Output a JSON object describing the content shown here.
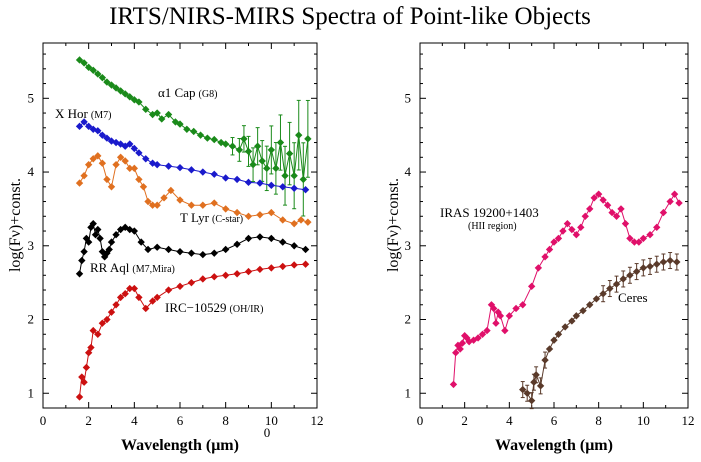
{
  "title": "IRTS/NIRS-MIRS Spectra of Point-like Objects",
  "chart_data": [
    {
      "type": "line",
      "xlabel": "Wavelength (μm)",
      "ylabel": "log(Fν)+const.",
      "xlim": [
        0,
        12
      ],
      "ylim": [
        0.8,
        5.75
      ],
      "xticks": [
        "0",
        "2",
        "4",
        "6",
        "8",
        "10",
        "12"
      ],
      "yticks": [
        "1",
        "2",
        "3",
        "4",
        "5"
      ],
      "grid": false,
      "extra_label": "0",
      "series": [
        {
          "name": "α1 Cap",
          "note": "(G8)",
          "color": "#1a8a1a",
          "x": [
            1.6,
            1.8,
            2.0,
            2.2,
            2.4,
            2.6,
            2.8,
            3.0,
            3.2,
            3.4,
            3.6,
            3.8,
            4.0,
            4.2,
            4.5,
            4.8,
            5.0,
            5.2,
            5.5,
            5.8,
            6.0,
            6.3,
            6.6,
            6.9,
            7.2,
            7.5,
            7.8,
            8.0,
            8.3,
            8.6,
            8.8,
            9.0,
            9.2,
            9.4,
            9.6,
            9.8,
            10.0,
            10.2,
            10.4,
            10.6,
            10.8,
            11.0,
            11.2,
            11.4,
            11.6
          ],
          "values": [
            5.52,
            5.48,
            5.42,
            5.38,
            5.33,
            5.28,
            5.22,
            5.18,
            5.14,
            5.1,
            5.06,
            5.02,
            4.98,
            4.95,
            4.85,
            4.78,
            4.8,
            4.72,
            4.78,
            4.68,
            4.65,
            4.58,
            4.55,
            4.5,
            4.46,
            4.44,
            4.4,
            4.38,
            4.35,
            4.3,
            4.45,
            4.28,
            4.1,
            4.35,
            4.15,
            4.05,
            4.3,
            4.05,
            4.4,
            3.95,
            4.25,
            3.95,
            4.5,
            3.9,
            4.45
          ],
          "error_bars": true
        },
        {
          "name": "X Hor",
          "note": "(M7)",
          "color": "#1a1acc",
          "x": [
            1.6,
            1.8,
            2.0,
            2.2,
            2.4,
            2.6,
            2.8,
            3.0,
            3.2,
            3.4,
            3.6,
            3.8,
            4.0,
            4.2,
            4.5,
            4.8,
            5.0,
            5.5,
            6.0,
            6.5,
            7.0,
            7.5,
            8.0,
            8.5,
            9.0,
            9.5,
            10.0,
            10.5,
            11.0,
            11.5
          ],
          "values": [
            4.62,
            4.68,
            4.62,
            4.58,
            4.56,
            4.5,
            4.46,
            4.42,
            4.4,
            4.38,
            4.35,
            4.38,
            4.32,
            4.26,
            4.18,
            4.12,
            4.1,
            4.08,
            4.06,
            4.03,
            4.0,
            3.97,
            3.92,
            3.9,
            3.86,
            3.85,
            3.82,
            3.8,
            3.78,
            3.76
          ]
        },
        {
          "name": "T Lyr",
          "note": "(C-star)",
          "color": "#e07020",
          "x": [
            1.6,
            1.8,
            2.0,
            2.2,
            2.4,
            2.6,
            2.8,
            3.0,
            3.2,
            3.4,
            3.6,
            3.8,
            4.0,
            4.2,
            4.4,
            4.6,
            4.8,
            5.0,
            5.3,
            5.6,
            6.0,
            6.5,
            7.0,
            7.5,
            8.0,
            8.5,
            9.0,
            9.5,
            10.0,
            10.5,
            11.0,
            11.3,
            11.6
          ],
          "values": [
            3.85,
            3.95,
            4.1,
            4.18,
            4.22,
            4.12,
            3.9,
            3.8,
            4.1,
            4.2,
            4.15,
            4.05,
            4.05,
            3.9,
            3.8,
            3.6,
            3.55,
            3.55,
            3.65,
            3.75,
            3.62,
            3.55,
            3.55,
            3.58,
            3.5,
            3.45,
            3.4,
            3.42,
            3.45,
            3.35,
            3.3,
            3.35,
            3.32
          ]
        },
        {
          "name": "RR Aql",
          "note": "(M7,Mira)",
          "color": "#000000",
          "x": [
            1.6,
            1.7,
            1.8,
            1.9,
            2.0,
            2.1,
            2.2,
            2.3,
            2.4,
            2.5,
            2.6,
            2.7,
            2.8,
            2.9,
            3.0,
            3.2,
            3.4,
            3.6,
            3.8,
            4.0,
            4.3,
            4.6,
            5.0,
            5.5,
            6.0,
            6.5,
            7.0,
            7.5,
            8.0,
            8.5,
            9.0,
            9.5,
            10.0,
            10.5,
            11.0,
            11.5
          ],
          "values": [
            2.62,
            2.8,
            2.92,
            3.1,
            3.05,
            3.25,
            3.3,
            3.15,
            3.22,
            3.1,
            2.92,
            2.85,
            2.9,
            2.95,
            3.05,
            3.15,
            3.22,
            3.25,
            3.22,
            3.2,
            3.05,
            2.95,
            2.98,
            2.95,
            2.92,
            2.9,
            2.88,
            2.9,
            2.95,
            3.02,
            3.1,
            3.12,
            3.1,
            3.05,
            3.0,
            2.95
          ]
        },
        {
          "name": "IRC−10529",
          "note": "(OH/IR)",
          "color": "#cc1010",
          "x": [
            1.6,
            1.7,
            1.8,
            1.9,
            2.0,
            2.1,
            2.2,
            2.4,
            2.6,
            2.8,
            3.0,
            3.2,
            3.4,
            3.6,
            3.8,
            4.0,
            4.2,
            4.5,
            4.8,
            5.0,
            5.5,
            6.0,
            6.5,
            7.0,
            7.5,
            8.0,
            8.5,
            9.0,
            9.5,
            10.0,
            10.5,
            11.0,
            11.5
          ],
          "values": [
            0.95,
            1.22,
            1.15,
            1.35,
            1.55,
            1.62,
            1.85,
            1.8,
            1.95,
            2.0,
            2.1,
            2.2,
            2.3,
            2.35,
            2.42,
            2.42,
            2.3,
            2.15,
            2.25,
            2.3,
            2.4,
            2.45,
            2.5,
            2.55,
            2.58,
            2.6,
            2.62,
            2.65,
            2.68,
            2.7,
            2.72,
            2.74,
            2.75
          ]
        }
      ],
      "annotations": [
        {
          "text": "α1 Cap",
          "small": "(G8)",
          "series": 0
        },
        {
          "text": "X Hor",
          "small": "(M7)",
          "series": 1
        },
        {
          "text": "T Lyr",
          "small": "(C-star)",
          "series": 2
        },
        {
          "text": "RR Aql",
          "small": "(M7,Mira)",
          "series": 3
        },
        {
          "text": "IRC−10529",
          "small": "(OH/IR)",
          "series": 4
        }
      ]
    },
    {
      "type": "line",
      "xlabel": "Wavelength (μm)",
      "ylabel": "log(Fν)+const.",
      "xlim": [
        0,
        12
      ],
      "ylim": [
        0.8,
        5.75
      ],
      "xticks": [
        "0",
        "2",
        "4",
        "6",
        "8",
        "10",
        "12"
      ],
      "yticks": [
        "1",
        "2",
        "3",
        "4",
        "5"
      ],
      "grid": false,
      "series": [
        {
          "name": "IRAS 19200+1403",
          "note": "(HII region)",
          "color": "#e0106a",
          "x": [
            1.5,
            1.6,
            1.7,
            1.8,
            1.9,
            2.0,
            2.1,
            2.2,
            2.4,
            2.6,
            2.8,
            3.0,
            3.2,
            3.3,
            3.4,
            3.5,
            3.6,
            3.8,
            4.0,
            4.3,
            4.6,
            5.0,
            5.3,
            5.6,
            5.8,
            6.0,
            6.2,
            6.4,
            6.6,
            6.8,
            7.0,
            7.2,
            7.4,
            7.6,
            7.8,
            8.0,
            8.2,
            8.4,
            8.6,
            8.8,
            9.0,
            9.2,
            9.4,
            9.6,
            9.8,
            10.0,
            10.3,
            10.6,
            10.9,
            11.2,
            11.4,
            11.6
          ],
          "values": [
            1.12,
            1.55,
            1.65,
            1.6,
            1.68,
            1.78,
            1.75,
            1.7,
            1.72,
            1.75,
            1.8,
            1.85,
            2.2,
            2.15,
            1.95,
            2.1,
            2.05,
            1.85,
            2.05,
            2.15,
            2.2,
            2.45,
            2.7,
            2.85,
            2.95,
            3.05,
            3.1,
            3.2,
            3.3,
            3.22,
            3.15,
            3.25,
            3.4,
            3.5,
            3.65,
            3.7,
            3.62,
            3.55,
            3.45,
            3.4,
            3.5,
            3.3,
            3.1,
            3.05,
            3.05,
            3.1,
            3.15,
            3.25,
            3.45,
            3.6,
            3.7,
            3.58
          ]
        },
        {
          "name": "Ceres",
          "color": "#5a3a2a",
          "x": [
            4.6,
            4.8,
            5.0,
            5.1,
            5.2,
            5.4,
            5.6,
            5.8,
            6.0,
            6.2,
            6.5,
            6.8,
            7.0,
            7.3,
            7.6,
            7.9,
            8.2,
            8.5,
            8.8,
            9.1,
            9.4,
            9.7,
            10.0,
            10.3,
            10.6,
            10.9,
            11.2,
            11.5
          ],
          "values": [
            1.05,
            1.0,
            0.9,
            1.15,
            1.25,
            1.1,
            1.45,
            1.6,
            1.72,
            1.8,
            1.9,
            1.98,
            2.05,
            2.12,
            2.2,
            2.28,
            2.35,
            2.42,
            2.48,
            2.55,
            2.6,
            2.65,
            2.7,
            2.72,
            2.75,
            2.78,
            2.8,
            2.78
          ],
          "error_bars": true
        }
      ],
      "annotations": [
        {
          "text": "IRAS 19200+1403",
          "small": "(HII region)",
          "series": 0
        },
        {
          "text": "Ceres",
          "series": 1
        }
      ]
    }
  ]
}
